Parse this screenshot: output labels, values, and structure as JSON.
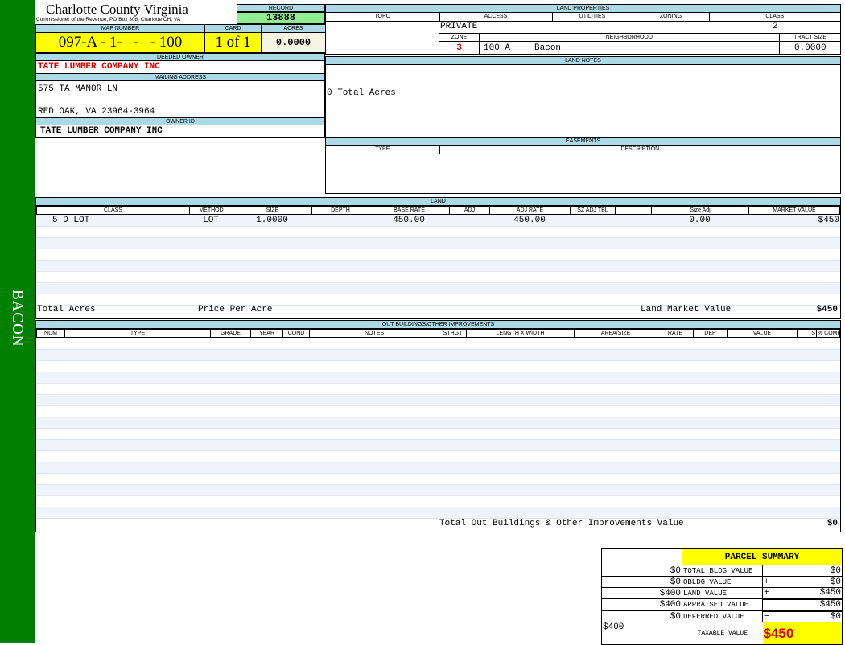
{
  "sidebar": {
    "label": "BACON",
    "color": "#008000"
  },
  "header": {
    "title": "Charlotte County Virginia",
    "subtitle": "Commissioner of the Revenue, PO Box 308, Charlotte CH, VA",
    "record_label": "RECORD",
    "record": "13888"
  },
  "parcel": {
    "map_number_label": "MAP NUMBER",
    "map_number": "097-A - 1-   -   - 100",
    "card_label": "CARD",
    "card": "1 of 1",
    "acres_label": "ACRES",
    "acres": "0.0000"
  },
  "owner": {
    "deeded_label": "DEEDED OWNER",
    "deeded": "TATE LUMBER COMPANY INC",
    "mailing_label": "MAILING ADDRESS",
    "address1": "575 TA MANOR LN",
    "address2": "RED OAK, VA 23964-3964",
    "owner_id_label": "OWNER ID",
    "owner_id": "TATE LUMBER COMPANY INC"
  },
  "land_properties": {
    "title": "LAND PROPERTIES",
    "topo_label": "TOPO",
    "access_label": "ACCESS",
    "utilities_label": "UTILITIES",
    "zoning_label": "ZONING",
    "class_label": "CLASS",
    "access": "PRIVATE",
    "class": "2",
    "zone_label": "ZONE",
    "neighborhood_label": "NEIGHBORHOOD",
    "tract_label": "TRACT SIZE",
    "zone": "3",
    "neighborhood_code": "100 A",
    "neighborhood": "Bacon",
    "tract_size": "0.0000"
  },
  "land_notes": {
    "title": "LAND NOTES",
    "text": "0 Total Acres"
  },
  "easements": {
    "title": "EASEMENTS",
    "type_label": "TYPE",
    "description_label": "DESCRIPTION"
  },
  "land": {
    "title": "LAND",
    "columns": [
      "CLASS",
      "METHOD",
      "SIZE",
      "DEPTH",
      "BASE RATE",
      "ADJ",
      "ADJ RATE",
      "SZ ADJ TBL",
      "",
      "Size Adj",
      "MARKET VALUE"
    ],
    "rows": [
      [
        "5 D LOT",
        "LOT",
        "1.0000",
        "",
        "450.00",
        "",
        "450.00",
        "",
        "",
        "0.00",
        "$450"
      ]
    ],
    "total_acres_label": "Total Acres",
    "price_per_acre_label": "Price Per Acre",
    "market_value_label": "Land Market Value",
    "market_value": "$450"
  },
  "outbuildings": {
    "title": "OUT BUILDINGS/OTHER IMPROVEMENTS",
    "columns": [
      "NUM",
      "TYPE",
      "GRADE",
      "YEAR",
      "COND",
      "NOTES",
      "STHGT",
      "LENGTH X WIDTH",
      "AREA/SIZE",
      "RATE",
      "DEP",
      "VALUE",
      "",
      "S",
      "% COMP"
    ],
    "total_label": "Total Out Buildings & Other Improvements Value",
    "total": "$0"
  },
  "summary": {
    "title": "PARCEL SUMMARY",
    "rows": [
      {
        "prior": "$0",
        "label": "TOTAL BLDG VALUE",
        "op": "",
        "value": "$0"
      },
      {
        "prior": "$0",
        "label": "OBLDG VALUE",
        "op": "+",
        "value": "$0"
      },
      {
        "prior": "$400",
        "label": "LAND VALUE",
        "op": "+",
        "value": "$450"
      },
      {
        "prior": "$400",
        "label": "APPRAISED VALUE",
        "op": "",
        "value": "$450"
      },
      {
        "prior": "$0",
        "label": "DEFERRED VALUE",
        "op": "−",
        "value": "$0"
      }
    ],
    "taxable_prior": "$400",
    "taxable_label": "TAXABLE VALUE",
    "taxable": "$450"
  },
  "colors": {
    "header_blue": "#add8e6",
    "yellow": "#ffff00",
    "green": "#90ee90",
    "red": "#e00000"
  }
}
